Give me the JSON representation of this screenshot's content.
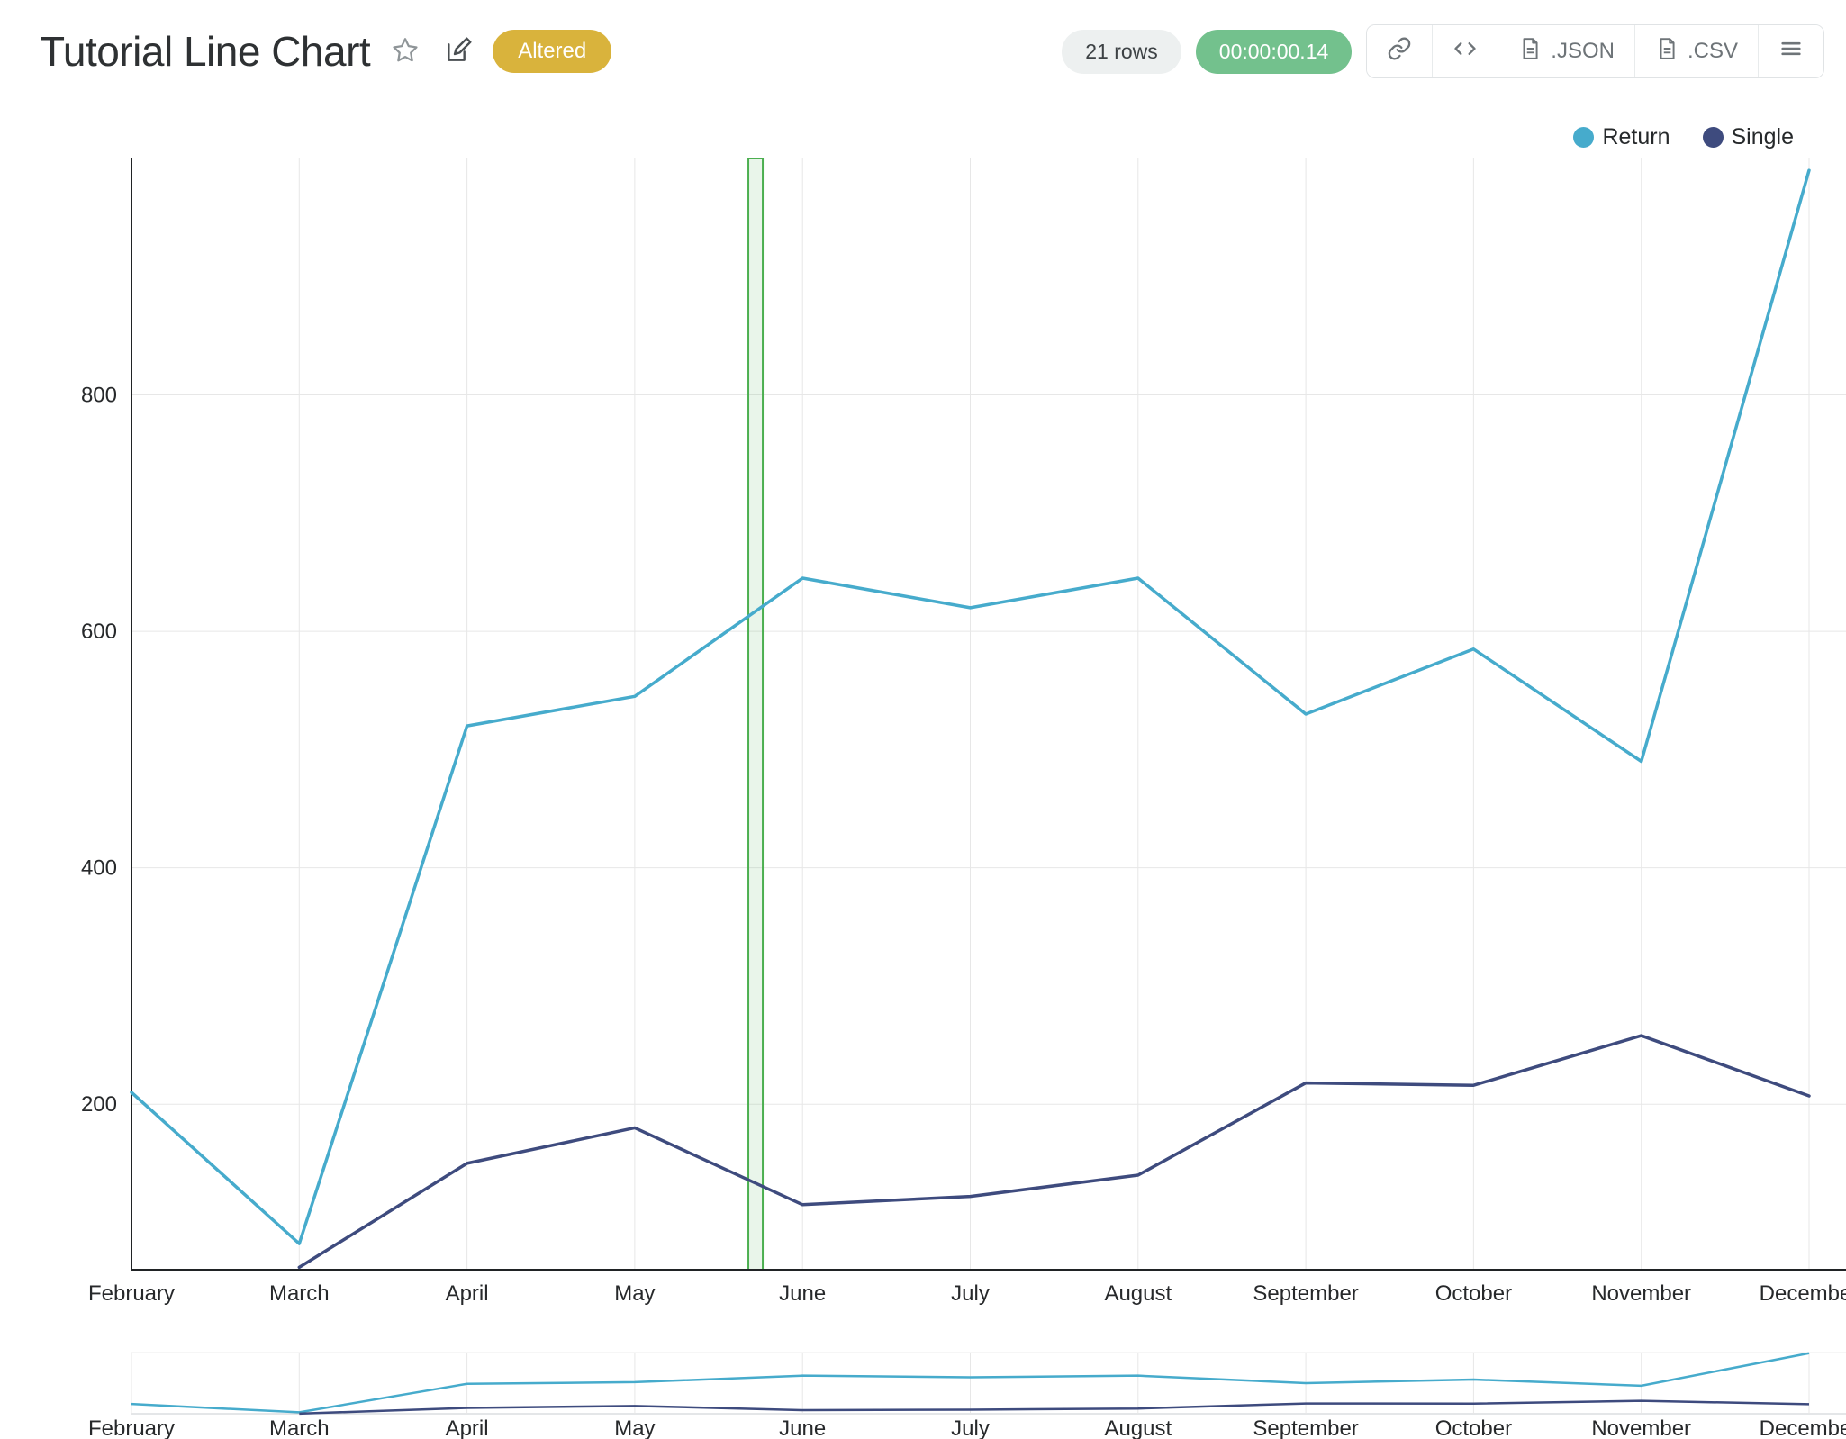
{
  "header": {
    "title": "Tutorial Line Chart",
    "altered_badge": "Altered",
    "row_count": "21 rows",
    "execution_time": "00:00:00.14",
    "buttons": {
      "json": ".JSON",
      "csv": ".CSV"
    },
    "colors": {
      "altered_bg": "#D9B33C",
      "timer_bg": "#73C18D"
    }
  },
  "legend": [
    {
      "label": "Return",
      "color": "#46ABCC"
    },
    {
      "label": "Single",
      "color": "#3E4B7E"
    }
  ],
  "chart_data": {
    "type": "line",
    "title": "Tutorial Line Chart",
    "x": [
      "February",
      "March",
      "April",
      "May",
      "June",
      "July",
      "August",
      "September",
      "October",
      "November",
      "December"
    ],
    "series": [
      {
        "name": "Return",
        "color": "#46ABCC",
        "values": [
          210,
          82,
          520,
          545,
          645,
          620,
          645,
          530,
          585,
          490,
          990
        ]
      },
      {
        "name": "Single",
        "color": "#3E4B7E",
        "values": [
          null,
          62,
          150,
          180,
          115,
          122,
          140,
          218,
          216,
          258,
          207
        ]
      }
    ],
    "y_ticks": [
      200,
      400,
      600,
      800
    ],
    "ylim": [
      60,
      1000
    ],
    "grid": true,
    "legend_position": "top-right",
    "highlight_band": {
      "between": [
        "May",
        "June"
      ],
      "fraction": 0.72,
      "width": 16,
      "color": "#4CAF50",
      "fill": "rgba(76,175,80,0.12)"
    },
    "subchart": true,
    "grid_color": "#e7e7e7",
    "axis_color": "#202325",
    "tick_label_color": "#27292b"
  }
}
